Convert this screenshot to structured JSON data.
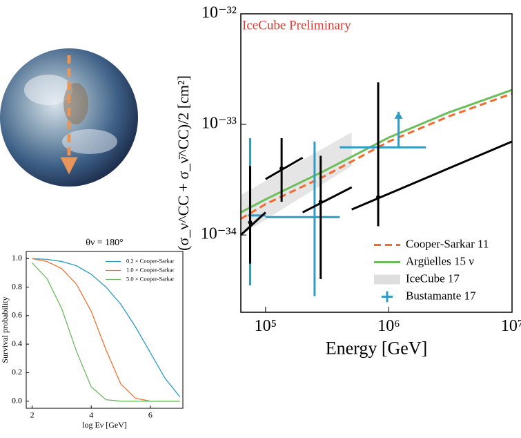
{
  "chart_data": [
    {
      "type": "line",
      "xlabel": "Energy [GeV]",
      "ylabel": "(σ_ν^CC + σ_ν̄^CC)/2 [cm²]",
      "annotation": "IceCube Preliminary",
      "annotation_color": "#e03a2f",
      "xlog": true,
      "ylog": true,
      "xlim": [
        63000,
        10000000
      ],
      "ylim": [
        2e-35,
        1e-32
      ],
      "xticks": [
        {
          "value": 100000,
          "label": "10⁵"
        },
        {
          "value": 1000000,
          "label": "10⁶"
        },
        {
          "value": 10000000,
          "label": "10⁷"
        }
      ],
      "yticks": [
        {
          "value": 1e-34,
          "label": "10⁻³⁴"
        },
        {
          "value": 1e-33,
          "label": "10⁻³³"
        },
        {
          "value": 1e-32,
          "label": "10⁻³²"
        }
      ],
      "legend": "lower right",
      "series": [
        {
          "name": "Cooper-Sarkar 11",
          "kind": "line",
          "style": "dashed",
          "color": "#f26a2d",
          "x": [
            63000,
            100000,
            300000,
            1000000,
            3000000,
            10000000
          ],
          "values": [
            1.4e-34,
            1.9e-34,
            3.4e-34,
            7e-34,
            1.17e-33,
            1.9e-33
          ]
        },
        {
          "name": "Argüelles 15 ν",
          "kind": "line",
          "style": "solid",
          "color": "#6bbf5b",
          "x": [
            63000,
            100000,
            300000,
            1000000,
            3000000,
            10000000
          ],
          "values": [
            1.6e-34,
            2.1e-34,
            3.8e-34,
            7.6e-34,
            1.27e-33,
            2.05e-33
          ]
        },
        {
          "name": "IceCube 17",
          "kind": "band",
          "color": "#dedede",
          "x": [
            63000,
            500000
          ],
          "lower": [
            1e-34,
            4.2e-34
          ],
          "upper": [
            2.3e-34,
            8.5e-34
          ]
        },
        {
          "name": "Bustamante 17",
          "kind": "errorbar",
          "color": "#2e9cc4",
          "x": [
            75000,
            250000,
            1200000
          ],
          "values": [
            1.5e-34,
            1.45e-34,
            6.2e-34
          ],
          "x_low": [
            72000,
            100000,
            400000
          ],
          "x_high": [
            100000,
            400000,
            2000000
          ],
          "y_low": [
            3.5e-35,
            2.8e-35,
            6.2e-34
          ],
          "y_high": [
            7.5e-34,
            7e-34,
            1.3e-33
          ],
          "arrow": [
            false,
            false,
            true
          ]
        },
        {
          "kind": "segments",
          "color": "#000000",
          "x": [
            75000,
            135000,
            280000,
            820000
          ],
          "values": [
            1.3e-34,
            4e-34,
            2e-34,
            2.2e-34
          ],
          "y_low": [
            5.5e-35,
            2e-34,
            4e-35,
            1.2e-34
          ],
          "y_high": [
            4.2e-34,
            7.5e-34,
            5.2e-34,
            2.4e-33
          ],
          "x_low": [
            63000,
            100000,
            200000,
            500000
          ],
          "x_high": [
            100000,
            200000,
            500000,
            10000000
          ],
          "y_at_low": [
            1e-34,
            3.2e-34,
            1.6e-34,
            1.7e-34
          ],
          "y_at_high": [
            1.6e-34,
            5e-34,
            2.7e-34,
            7e-34
          ]
        }
      ]
    },
    {
      "type": "line",
      "title": "θν = 180°",
      "xlabel": "log Eν [GeV]",
      "ylabel": "Survival probability",
      "xlim": [
        1.8,
        7.1
      ],
      "ylim": [
        -0.05,
        1.05
      ],
      "xticks": [
        2,
        4,
        6
      ],
      "yticks": [
        {
          "value": 0,
          "label": "0.0"
        },
        {
          "value": 0.2,
          "label": "0.2"
        },
        {
          "value": 0.4,
          "label": "0.4"
        },
        {
          "value": 0.6,
          "label": "0.6"
        },
        {
          "value": 0.8,
          "label": "0.8"
        },
        {
          "value": 1,
          "label": "1.0"
        }
      ],
      "legend": "upper right",
      "series": [
        {
          "name": "0.2 × Cooper-Sarkar",
          "kind": "line",
          "style": "solid",
          "color": "#2a9bc0",
          "x": [
            2,
            2.5,
            3,
            3.5,
            4,
            4.5,
            5,
            5.5,
            6,
            6.5,
            7
          ],
          "values": [
            1.0,
            0.995,
            0.98,
            0.95,
            0.89,
            0.8,
            0.68,
            0.52,
            0.34,
            0.16,
            0.03
          ]
        },
        {
          "name": "1.0 × Cooper-Sarkar",
          "kind": "line",
          "style": "solid",
          "color": "#f07030",
          "x": [
            2,
            2.5,
            3,
            3.5,
            4,
            4.5,
            5,
            5.5,
            6,
            6.5,
            7
          ],
          "values": [
            1.0,
            0.98,
            0.93,
            0.82,
            0.63,
            0.36,
            0.12,
            0.02,
            0,
            0,
            0
          ]
        },
        {
          "name": "5.0 × Cooper-Sarkar",
          "kind": "line",
          "style": "solid",
          "color": "#6bb860",
          "x": [
            2,
            2.5,
            3,
            3.5,
            4,
            4.5,
            5,
            5.5,
            6,
            6.5,
            7
          ],
          "values": [
            0.97,
            0.86,
            0.65,
            0.35,
            0.1,
            0.01,
            0,
            0,
            0,
            0,
            0
          ]
        }
      ]
    }
  ]
}
